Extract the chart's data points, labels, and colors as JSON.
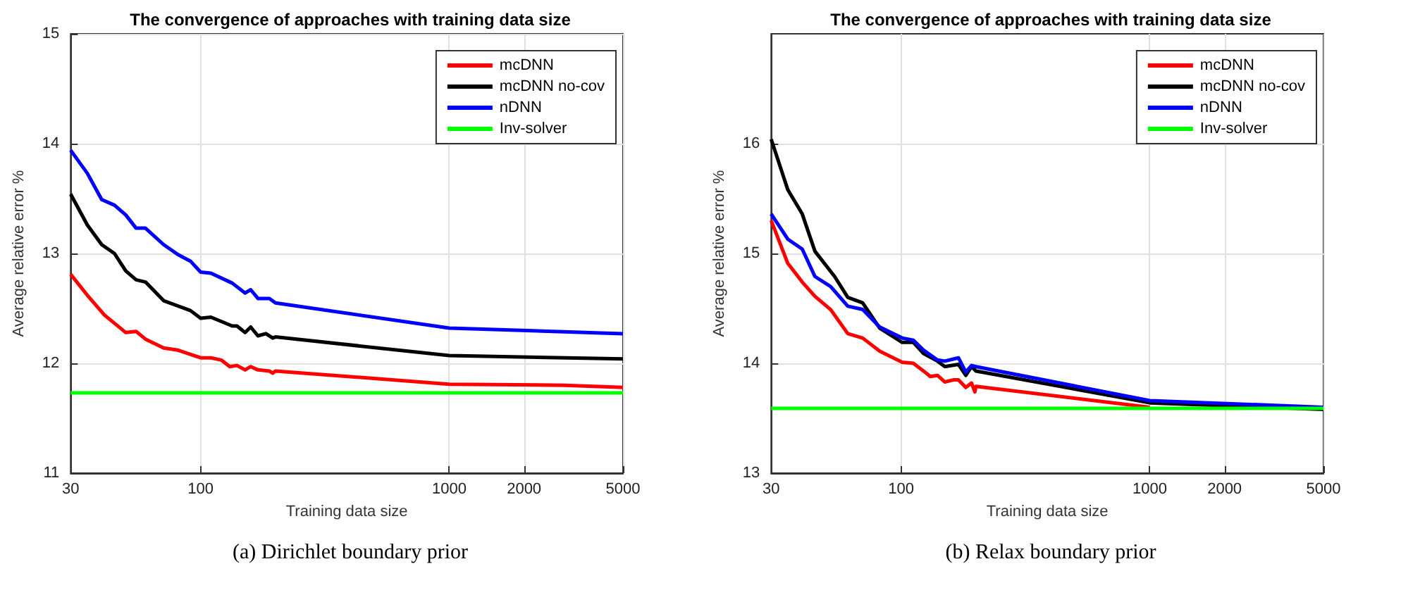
{
  "chart_data": [
    {
      "type": "line",
      "title": "The convergence of approaches with training data size",
      "xlabel": "Training data size",
      "ylabel": "Average relative error %",
      "annotations": [
        "(a) Dirichlet boundary prior"
      ],
      "log": "x",
      "grid": true,
      "legend": "top right",
      "xlim": [
        30,
        5000
      ],
      "xticks": [
        30,
        100,
        1000,
        2000,
        5000
      ],
      "ylim": [
        11,
        15
      ],
      "yticks": [
        11,
        12,
        13,
        14,
        15
      ],
      "series": [
        {
          "name": "mcDNN",
          "color": "#ff0000",
          "x": [
            30,
            35,
            41,
            50,
            55,
            60,
            71,
            81,
            100,
            110,
            121,
            131,
            140,
            151,
            159,
            170,
            189,
            195,
            200,
            1000,
            2900,
            5000
          ],
          "values": [
            12.81,
            12.62,
            12.44,
            12.28,
            12.29,
            12.22,
            12.14,
            12.12,
            12.05,
            12.05,
            12.03,
            11.97,
            11.98,
            11.94,
            11.97,
            11.94,
            11.93,
            11.91,
            11.93,
            11.81,
            11.8,
            11.78
          ]
        },
        {
          "name": "mcDNN no-cov",
          "color": "#000000",
          "x": [
            30,
            35,
            40,
            45,
            50,
            55,
            60,
            71,
            91,
            100,
            110,
            134,
            140,
            151,
            159,
            170,
            183,
            195,
            200,
            1000,
            5000
          ],
          "values": [
            13.54,
            13.26,
            13.08,
            13.0,
            12.84,
            12.76,
            12.74,
            12.57,
            12.48,
            12.41,
            12.42,
            12.34,
            12.34,
            12.28,
            12.33,
            12.25,
            12.27,
            12.23,
            12.24,
            12.07,
            12.04
          ]
        },
        {
          "name": "nDNN",
          "color": "#0000ff",
          "x": [
            30,
            35,
            40,
            45,
            50,
            55,
            60,
            71,
            81,
            91,
            100,
            110,
            134,
            151,
            159,
            170,
            189,
            200,
            1000,
            5000
          ],
          "values": [
            13.94,
            13.73,
            13.49,
            13.44,
            13.35,
            13.23,
            13.23,
            13.08,
            12.99,
            12.93,
            12.83,
            12.82,
            12.73,
            12.64,
            12.67,
            12.59,
            12.59,
            12.55,
            12.32,
            12.27
          ]
        },
        {
          "name": "Inv-solver",
          "color": "#00ff00",
          "x": [
            30,
            5000
          ],
          "values": [
            11.73,
            11.73
          ]
        }
      ]
    },
    {
      "type": "line",
      "title": "The convergence of approaches with training data size",
      "xlabel": "Training data size",
      "ylabel": "Average relative error %",
      "annotations": [
        "(b) Relax boundary prior"
      ],
      "log": "x",
      "grid": true,
      "legend": "top right",
      "xlim": [
        30,
        5000
      ],
      "xticks": [
        30,
        100,
        1000,
        2000,
        5000
      ],
      "ylim": [
        13,
        17
      ],
      "yticks": [
        13,
        14,
        15,
        16
      ],
      "series": [
        {
          "name": "mcDNN",
          "color": "#ff0000",
          "x": [
            30,
            35,
            40,
            45,
            52,
            61,
            70,
            82,
            101,
            112,
            123,
            131,
            140,
            150,
            163,
            170,
            182,
            192,
            198,
            200,
            1000
          ],
          "values": [
            15.3,
            14.91,
            14.74,
            14.61,
            14.49,
            14.27,
            14.23,
            14.11,
            14.01,
            14.0,
            13.93,
            13.88,
            13.89,
            13.83,
            13.85,
            13.85,
            13.78,
            13.82,
            13.74,
            13.79,
            13.6
          ]
        },
        {
          "name": "mcDNN no-cov",
          "color": "#000000",
          "x": [
            30,
            35,
            40,
            45,
            54,
            61,
            70,
            82,
            101,
            112,
            123,
            140,
            150,
            170,
            182,
            192,
            200,
            1000,
            5000
          ],
          "values": [
            16.04,
            15.58,
            15.36,
            15.02,
            14.79,
            14.6,
            14.55,
            14.32,
            14.19,
            14.19,
            14.09,
            14.02,
            13.97,
            13.99,
            13.89,
            13.97,
            13.93,
            13.64,
            13.58
          ]
        },
        {
          "name": "nDNN",
          "color": "#0000ff",
          "x": [
            30,
            35,
            40,
            45,
            52,
            61,
            70,
            82,
            101,
            112,
            123,
            140,
            150,
            170,
            182,
            192,
            200,
            1000,
            5000
          ],
          "values": [
            15.36,
            15.13,
            15.04,
            14.79,
            14.7,
            14.52,
            14.49,
            14.33,
            14.23,
            14.21,
            14.12,
            14.03,
            14.02,
            14.05,
            13.92,
            13.98,
            13.97,
            13.66,
            13.6
          ]
        },
        {
          "name": "Inv-solver",
          "color": "#00ff00",
          "x": [
            30,
            5000
          ],
          "values": [
            13.59,
            13.59
          ]
        }
      ]
    }
  ]
}
